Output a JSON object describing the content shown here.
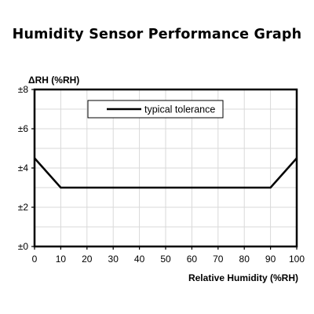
{
  "chart_data": {
    "type": "line",
    "title": "Humidity Sensor Performance Graph",
    "xlabel": "Relative Humidity (%RH)",
    "ylabel": "ΔRH (%RH)",
    "xlim": [
      0,
      100
    ],
    "ylim": [
      0,
      8
    ],
    "x_ticks": [
      0,
      10,
      20,
      30,
      40,
      50,
      60,
      70,
      80,
      90,
      100
    ],
    "x_tick_labels": [
      "0",
      "10",
      "20",
      "30",
      "40",
      "50",
      "60",
      "70",
      "80",
      "90",
      "100"
    ],
    "y_ticks": [
      0,
      2,
      4,
      6,
      8
    ],
    "y_tick_labels": [
      "±0",
      "±2",
      "±4",
      "±6",
      "±8"
    ],
    "grid": true,
    "legend_position": "top-center",
    "series": [
      {
        "name": "typical tolerance",
        "color": "#000000",
        "x": [
          0,
          10,
          90,
          100
        ],
        "y": [
          4.5,
          3,
          3,
          4.5
        ]
      }
    ]
  }
}
